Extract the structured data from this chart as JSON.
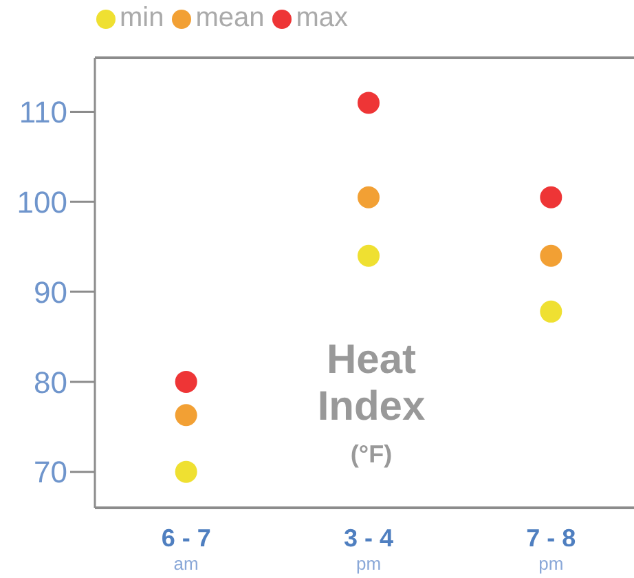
{
  "chart_data": {
    "type": "scatter",
    "ylabel": "Heat Index (°F)",
    "categories": [
      "6 - 7 $_{am}$",
      "3 - 4 $_{pm}$",
      "7 - 8 $_{pm}$"
    ],
    "series": [
      {
        "name": "min",
        "color": "#efe031",
        "values": [
          70,
          94,
          87.8
        ]
      },
      {
        "name": "mean",
        "color": "#f2a034",
        "values": [
          76.3,
          100.5,
          94
        ]
      },
      {
        "name": "max",
        "color": "#ee3536",
        "values": [
          80,
          111,
          100.5
        ]
      }
    ],
    "ylim": [
      66,
      116
    ],
    "yticks": [
      70,
      80,
      90,
      100,
      110
    ],
    "grid": false,
    "legend": "top left",
    "marker": "circle"
  }
}
